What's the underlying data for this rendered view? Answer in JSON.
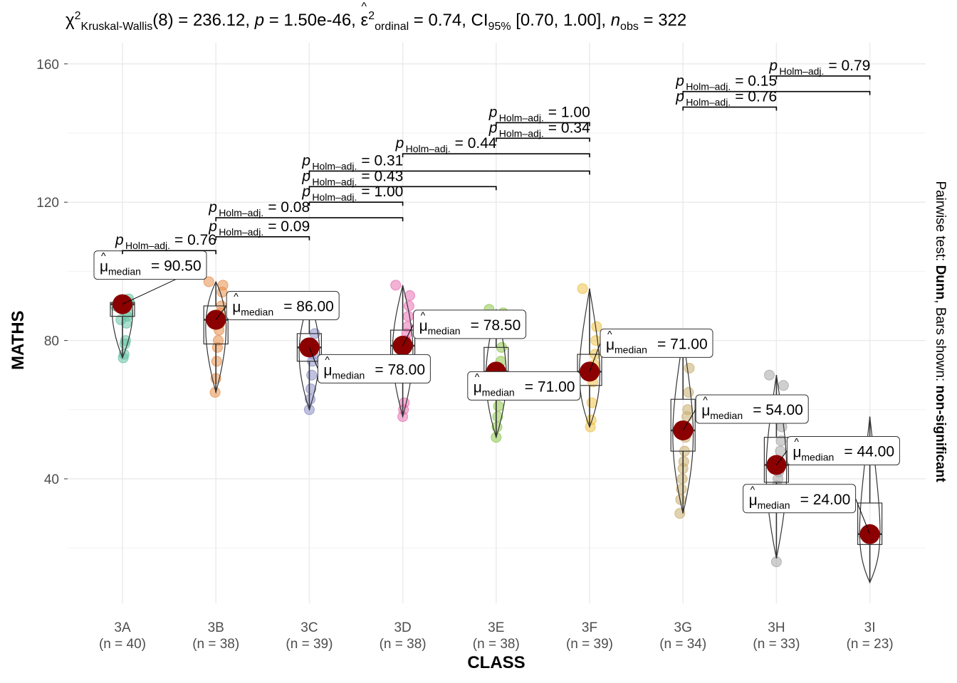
{
  "subtitle": {
    "stat_symbol": "χ",
    "stat_sup": "2",
    "test_name": "Kruskal-Wallis",
    "df_text": "(8) = 236.12, ",
    "p_symbol": "p",
    "p_text": " = 1.50e-46, ",
    "eff_symbol": "ε",
    "eff_sup": "2",
    "eff_sub": "ordinal",
    "eff_text": " = 0.74, CI",
    "ci_sub": "95%",
    "ci_text": " [0.70, 1.00], ",
    "n_symbol": "n",
    "n_sub": "obs",
    "n_text": " = 322"
  },
  "caption": {
    "prefix": "Pairwise test: ",
    "test": "Dunn",
    "middle": ", Bars shown: ",
    "shown": "non-significant"
  },
  "colors": {
    "median_point": "#8B0000",
    "grid": "#EBEBEB",
    "box": "#333333"
  },
  "chart_data": {
    "type": "violin-box-scatter",
    "xlabel": "CLASS",
    "ylabel": "MATHS",
    "ylim": [
      1,
      165
    ],
    "yticks": [
      40,
      80,
      120,
      160
    ],
    "grid": true,
    "categories": [
      "3A",
      "3B",
      "3C",
      "3D",
      "3E",
      "3F",
      "3G",
      "3H",
      "3I"
    ],
    "n_labels": [
      "(n = 40)",
      "(n = 38)",
      "(n = 39)",
      "(n = 38)",
      "(n = 38)",
      "(n = 39)",
      "(n = 34)",
      "(n = 33)",
      "(n = 23)"
    ],
    "point_colors": [
      "#66C2A5",
      "#E78F4D",
      "#8D8FC6",
      "#E873B3",
      "#8FC74E",
      "#EFC34A",
      "#C9AD6E",
      "#A7A7A7",
      "#D0D0D0"
    ],
    "medians": [
      90.5,
      86.0,
      78.0,
      78.5,
      71.0,
      71.0,
      54.0,
      44.0,
      24.0
    ],
    "median_labels": [
      "= 90.50",
      "= 86.00",
      "= 78.00",
      "= 78.50",
      "= 71.00",
      "= 71.00",
      "= 54.00",
      "= 44.00",
      "= 24.00"
    ],
    "median_label_symbol": "μ",
    "median_label_sub": "median",
    "boxes": [
      {
        "q1": 87,
        "q3": 91,
        "min": 75,
        "max": 92
      },
      {
        "q1": 79,
        "q3": 90,
        "min": 65,
        "max": 97
      },
      {
        "q1": 74,
        "q3": 82,
        "min": 60,
        "max": 92
      },
      {
        "q1": 75,
        "q3": 83,
        "min": 58,
        "max": 96
      },
      {
        "q1": 65,
        "q3": 78,
        "min": 52,
        "max": 89
      },
      {
        "q1": 67,
        "q3": 76,
        "min": 55,
        "max": 95
      },
      {
        "q1": 48,
        "q3": 63,
        "min": 30,
        "max": 81
      },
      {
        "q1": 39,
        "q3": 52,
        "min": 17,
        "max": 70
      },
      {
        "q1": 21,
        "q3": 33,
        "min": 10,
        "max": 58
      }
    ],
    "points": [
      [
        90,
        91,
        92,
        88,
        87,
        85,
        80,
        79,
        76,
        75,
        89,
        90,
        86
      ],
      [
        97,
        96,
        94,
        90,
        88,
        85,
        83,
        80,
        78,
        74,
        69,
        65,
        86
      ],
      [
        92,
        90,
        88,
        82,
        78,
        76,
        74,
        70,
        66,
        63,
        60,
        78
      ],
      [
        96,
        93,
        90,
        87,
        84,
        82,
        80,
        75,
        62,
        60,
        58,
        79
      ],
      [
        89,
        88,
        86,
        78,
        74,
        70,
        66,
        61,
        58,
        55,
        52,
        71
      ],
      [
        95,
        84,
        80,
        76,
        73,
        71,
        68,
        62,
        57,
        55,
        71
      ],
      [
        81,
        78,
        72,
        65,
        60,
        58,
        55,
        52,
        48,
        45,
        43,
        40,
        37,
        34,
        30
      ],
      [
        70,
        67,
        62,
        55,
        51,
        48,
        45,
        42,
        40,
        38,
        16
      ],
      [
        24
      ]
    ],
    "pairwise": [
      {
        "from": 0,
        "to": 1,
        "y": 106,
        "p": "= 0.76"
      },
      {
        "from": 1,
        "to": 2,
        "y": 110,
        "p": "= 0.09"
      },
      {
        "from": 1,
        "to": 3,
        "y": 115.5,
        "p": "= 0.08"
      },
      {
        "from": 2,
        "to": 3,
        "y": 120,
        "p": "= 1.00"
      },
      {
        "from": 2,
        "to": 4,
        "y": 124.5,
        "p": "= 0.43"
      },
      {
        "from": 2,
        "to": 5,
        "y": 129,
        "p": "= 0.31"
      },
      {
        "from": 3,
        "to": 5,
        "y": 134,
        "p": "= 0.44"
      },
      {
        "from": 4,
        "to": 5,
        "y": 138.5,
        "p": "= 0.34"
      },
      {
        "from": 4,
        "to": 5,
        "y": 143,
        "p": "= 1.00"
      },
      {
        "from": 6,
        "to": 7,
        "y": 147.5,
        "p": "= 0.76"
      },
      {
        "from": 6,
        "to": 8,
        "y": 152,
        "p": "= 0.15"
      },
      {
        "from": 7,
        "to": 8,
        "y": 156.5,
        "p": "= 0.79"
      }
    ],
    "p_label_symbol": "p",
    "p_label_sub": "Holm–adj."
  }
}
